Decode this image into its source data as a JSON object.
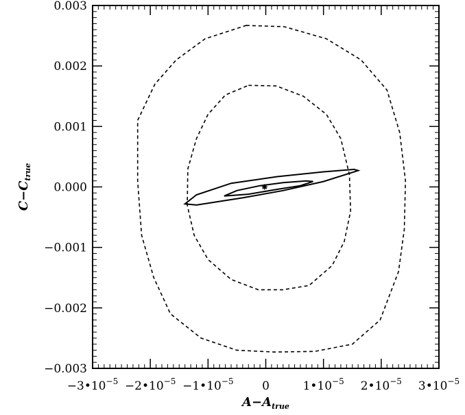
{
  "chart_data": {
    "type": "line",
    "title": "",
    "xlabel": {
      "main": "A−A",
      "sub": "true"
    },
    "ylabel": {
      "main": "C−C",
      "sub": "true"
    },
    "xlim": [
      -3e-05,
      3e-05
    ],
    "ylim": [
      -0.003,
      0.003
    ],
    "grid": false,
    "x_ticks": [
      {
        "value": -3e-05,
        "mant": "−3•10",
        "exp": "−5"
      },
      {
        "value": -2e-05,
        "mant": "−2•10",
        "exp": "−5"
      },
      {
        "value": -1e-05,
        "mant": "−1•10",
        "exp": "−5"
      },
      {
        "value": 0,
        "mant": "0",
        "exp": ""
      },
      {
        "value": 1e-05,
        "mant": "1•10",
        "exp": "−5"
      },
      {
        "value": 2e-05,
        "mant": "2•10",
        "exp": "−5"
      },
      {
        "value": 3e-05,
        "mant": "3•10",
        "exp": "−5"
      }
    ],
    "y_ticks": [
      {
        "value": 0.003,
        "label": "0.003"
      },
      {
        "value": 0.002,
        "label": "0.002"
      },
      {
        "value": 0.001,
        "label": "0.001"
      },
      {
        "value": 0,
        "label": "0.000"
      },
      {
        "value": -0.001,
        "label": "−0.001"
      },
      {
        "value": -0.002,
        "label": "−0.002"
      },
      {
        "value": -0.003,
        "label": "−0.003"
      }
    ],
    "series": [
      {
        "style": "dashed",
        "points": [
          [
            -3.4e-06,
            0.00267
          ],
          [
            3.2e-06,
            0.00265
          ],
          [
            1.05e-05,
            0.00245
          ],
          [
            1.65e-05,
            0.0021
          ],
          [
            2.1e-05,
            0.0016
          ],
          [
            2.32e-05,
            0.0009
          ],
          [
            2.42e-05,
            0.0001
          ],
          [
            2.4e-05,
            -0.0007
          ],
          [
            2.3e-05,
            -0.0014
          ],
          [
            1.98e-05,
            -0.0022
          ],
          [
            1.5e-05,
            -0.0026
          ],
          [
            8.5e-06,
            -0.00272
          ],
          [
            1.5e-06,
            -0.00273
          ],
          [
            -5e-06,
            -0.0027
          ],
          [
            -1.12e-05,
            -0.0025
          ],
          [
            -1.65e-05,
            -0.0021
          ],
          [
            -1.94e-05,
            -0.0015
          ],
          [
            -2.15e-05,
            -0.0008
          ],
          [
            -2.22e-05,
            0.0001
          ],
          [
            -2.22e-05,
            0.0011
          ],
          [
            -1.92e-05,
            0.0017
          ],
          [
            -1.55e-05,
            0.0021
          ],
          [
            -1.05e-05,
            0.00245
          ],
          [
            -3.4e-06,
            0.00267
          ]
        ]
      },
      {
        "style": "dashed",
        "points": [
          [
            -3e-06,
            0.00168
          ],
          [
            1.8e-06,
            0.00167
          ],
          [
            6.5e-06,
            0.0015
          ],
          [
            1.05e-05,
            0.0012
          ],
          [
            1.3e-05,
            0.0008
          ],
          [
            1.45e-05,
            0.0002
          ],
          [
            1.47e-05,
            -0.0004
          ],
          [
            1.36e-05,
            -0.0009
          ],
          [
            1.15e-05,
            -0.0013
          ],
          [
            7.5e-06,
            -0.00163
          ],
          [
            3e-06,
            -0.0017
          ],
          [
            -1.3e-06,
            -0.0017
          ],
          [
            -6e-06,
            -0.00153
          ],
          [
            -1e-05,
            -0.0012
          ],
          [
            -1.24e-05,
            -0.0008
          ],
          [
            -1.36e-05,
            -0.0003
          ],
          [
            -1.35e-05,
            0.0003
          ],
          [
            -1.2e-05,
            0.0008
          ],
          [
            -1e-05,
            0.0012
          ],
          [
            -7e-06,
            0.00152
          ],
          [
            -3e-06,
            0.00168
          ]
        ]
      },
      {
        "style": "solid",
        "points": [
          [
            -1.4e-05,
            -0.00028
          ],
          [
            -1.2e-05,
            -0.0003
          ],
          [
            -4e-06,
            -0.00018
          ],
          [
            3e-06,
            -6e-05
          ],
          [
            1e-05,
            9e-05
          ],
          [
            1.6e-05,
            0.00027
          ],
          [
            1.53e-05,
            0.00029
          ],
          [
            1e-05,
            0.00025
          ],
          [
            2e-06,
            0.00017
          ],
          [
            -6e-06,
            6e-05
          ],
          [
            -1.2e-05,
            -0.00013
          ],
          [
            -1.4e-05,
            -0.00028
          ]
        ]
      },
      {
        "style": "solid",
        "points": [
          [
            -7.2e-06,
            -0.00015
          ],
          [
            -3e-06,
            -0.00012
          ],
          [
            2e-06,
            -4e-05
          ],
          [
            6e-06,
            2e-05
          ],
          [
            8.2e-06,
            9e-05
          ],
          [
            7e-06,
            0.0001
          ],
          [
            3e-06,
            7e-05
          ],
          [
            -1e-06,
            2e-05
          ],
          [
            -5e-06,
            -6e-05
          ],
          [
            -7.2e-06,
            -0.00015
          ]
        ]
      }
    ],
    "marker": {
      "x": -2e-07,
      "y": 0.0,
      "symbol": "asterisk"
    }
  }
}
